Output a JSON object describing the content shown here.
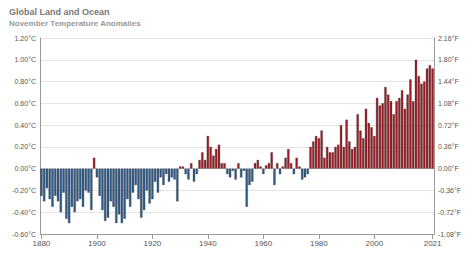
{
  "chart_data": {
    "type": "bar",
    "title": "Global Land and Ocean",
    "subtitle": "November Temperature Anomalies",
    "categories": [
      "1880",
      null,
      null,
      null,
      null,
      null,
      null,
      null,
      null,
      null,
      null,
      null,
      null,
      null,
      null,
      null,
      null,
      null,
      null,
      null,
      "1900",
      null,
      null,
      null,
      null,
      null,
      null,
      null,
      null,
      null,
      null,
      null,
      null,
      null,
      null,
      null,
      null,
      null,
      null,
      null,
      "1920",
      null,
      null,
      null,
      null,
      null,
      null,
      null,
      null,
      null,
      null,
      null,
      null,
      null,
      null,
      null,
      null,
      null,
      null,
      null,
      "1940",
      null,
      null,
      null,
      null,
      null,
      null,
      null,
      null,
      null,
      null,
      null,
      null,
      null,
      null,
      null,
      null,
      null,
      null,
      null,
      "1960",
      null,
      null,
      null,
      null,
      null,
      null,
      null,
      null,
      null,
      null,
      null,
      null,
      null,
      null,
      null,
      null,
      null,
      null,
      null,
      "1980",
      null,
      null,
      null,
      null,
      null,
      null,
      null,
      null,
      null,
      null,
      null,
      null,
      null,
      null,
      null,
      null,
      null,
      null,
      null,
      "2000",
      null,
      null,
      null,
      null,
      null,
      null,
      null,
      null,
      null,
      null,
      null,
      null,
      null,
      null,
      null,
      null,
      null,
      null,
      null,
      null,
      "2021"
    ],
    "values": [
      -0.25,
      -0.3,
      -0.18,
      -0.28,
      -0.35,
      -0.25,
      -0.3,
      -0.4,
      -0.22,
      -0.46,
      -0.5,
      -0.35,
      -0.4,
      -0.3,
      -0.28,
      -0.35,
      -0.2,
      -0.22,
      -0.38,
      0.1,
      -0.08,
      -0.25,
      -0.38,
      -0.48,
      -0.45,
      -0.3,
      -0.35,
      -0.5,
      -0.42,
      -0.5,
      -0.46,
      -0.28,
      -0.35,
      -0.22,
      -0.15,
      -0.28,
      -0.45,
      -0.38,
      -0.2,
      -0.32,
      -0.28,
      -0.12,
      -0.22,
      -0.08,
      -0.15,
      -0.05,
      -0.12,
      -0.08,
      -0.1,
      -0.3,
      0.02,
      0.02,
      -0.05,
      -0.1,
      0.05,
      -0.12,
      -0.05,
      0.08,
      0.15,
      0.08,
      0.3,
      0.2,
      0.12,
      0.18,
      0.22,
      0.05,
      0.05,
      -0.05,
      -0.08,
      -0.02,
      -0.1,
      0.05,
      -0.08,
      -0.02,
      -0.35,
      -0.15,
      -0.12,
      0.05,
      0.08,
      0.02,
      -0.05,
      0.03,
      0.05,
      0.15,
      -0.15,
      0.05,
      -0.05,
      0.02,
      0.1,
      0.18,
      0.05,
      -0.05,
      0.1,
      0.02,
      -0.1,
      -0.08,
      -0.05,
      0.2,
      0.25,
      0.3,
      0.28,
      0.35,
      0.1,
      0.2,
      0.15,
      0.15,
      0.2,
      0.22,
      0.4,
      0.2,
      0.45,
      0.25,
      0.18,
      0.2,
      0.5,
      0.35,
      0.28,
      0.55,
      0.42,
      0.38,
      0.3,
      0.65,
      0.58,
      0.6,
      0.75,
      0.68,
      0.62,
      0.5,
      0.62,
      0.65,
      0.72,
      0.55,
      0.68,
      0.82,
      0.62,
      1.0,
      0.85,
      0.78,
      0.8,
      0.92,
      0.95,
      0.92
    ],
    "colors": [
      "#2e5b8a",
      "#2e5b8a",
      "#2e5b8a",
      "#2e5b8a",
      "#2e5b8a",
      "#2e5b8a",
      "#2e5b8a",
      "#2e5b8a",
      "#2e5b8a",
      "#2e5b8a",
      "#2e5b8a",
      "#2e5b8a",
      "#2e5b8a",
      "#2e5b8a",
      "#2e5b8a",
      "#2e5b8a",
      "#2e5b8a",
      "#2e5b8a",
      "#2e5b8a",
      "#9e1b24",
      "#2e5b8a",
      "#2e5b8a",
      "#2e5b8a",
      "#2e5b8a",
      "#2e5b8a",
      "#2e5b8a",
      "#2e5b8a",
      "#2e5b8a",
      "#2e5b8a",
      "#2e5b8a",
      "#2e5b8a",
      "#2e5b8a",
      "#2e5b8a",
      "#2e5b8a",
      "#2e5b8a",
      "#2e5b8a",
      "#2e5b8a",
      "#2e5b8a",
      "#2e5b8a",
      "#2e5b8a",
      "#2e5b8a",
      "#2e5b8a",
      "#2e5b8a",
      "#2e5b8a",
      "#2e5b8a",
      "#2e5b8a",
      "#2e5b8a",
      "#2e5b8a",
      "#2e5b8a",
      "#2e5b8a",
      "#9e1b24",
      "#9e1b24",
      "#2e5b8a",
      "#2e5b8a",
      "#9e1b24",
      "#2e5b8a",
      "#2e5b8a",
      "#9e1b24",
      "#9e1b24",
      "#9e1b24",
      "#9e1b24",
      "#9e1b24",
      "#9e1b24",
      "#9e1b24",
      "#9e1b24",
      "#9e1b24",
      "#9e1b24",
      "#2e5b8a",
      "#2e5b8a",
      "#2e5b8a",
      "#2e5b8a",
      "#9e1b24",
      "#2e5b8a",
      "#2e5b8a",
      "#2e5b8a",
      "#2e5b8a",
      "#2e5b8a",
      "#9e1b24",
      "#9e1b24",
      "#9e1b24",
      "#2e5b8a",
      "#9e1b24",
      "#9e1b24",
      "#9e1b24",
      "#2e5b8a",
      "#9e1b24",
      "#2e5b8a",
      "#9e1b24",
      "#9e1b24",
      "#9e1b24",
      "#9e1b24",
      "#2e5b8a",
      "#9e1b24",
      "#9e1b24",
      "#2e5b8a",
      "#2e5b8a",
      "#2e5b8a",
      "#9e1b24",
      "#9e1b24",
      "#9e1b24",
      "#9e1b24",
      "#9e1b24",
      "#9e1b24",
      "#9e1b24",
      "#9e1b24",
      "#9e1b24",
      "#9e1b24",
      "#9e1b24",
      "#9e1b24",
      "#9e1b24",
      "#9e1b24",
      "#9e1b24",
      "#9e1b24",
      "#9e1b24",
      "#9e1b24",
      "#9e1b24",
      "#9e1b24",
      "#9e1b24",
      "#9e1b24",
      "#9e1b24",
      "#9e1b24",
      "#9e1b24",
      "#9e1b24",
      "#9e1b24",
      "#9e1b24",
      "#9e1b24",
      "#9e1b24",
      "#9e1b24",
      "#9e1b24",
      "#9e1b24",
      "#9e1b24",
      "#9e1b24",
      "#9e1b24",
      "#9e1b24",
      "#9e1b24",
      "#9e1b24",
      "#9e1b24",
      "#9e1b24",
      "#9e1b24",
      "#9e1b24",
      "#9e1b24",
      "#9e1b24"
    ],
    "ylim": [
      -0.6,
      1.2
    ],
    "yticks": [
      {
        "value": -0.6,
        "label": "-0.60°C"
      },
      {
        "value": -0.4,
        "label": "-0.40°C"
      },
      {
        "value": -0.2,
        "label": "-0.20°C"
      },
      {
        "value": 0,
        "label": "0.00°C"
      },
      {
        "value": 0.2,
        "label": "0.20°C"
      },
      {
        "value": 0.4,
        "label": "0.40°C"
      },
      {
        "value": 0.6,
        "label": "0.60°C"
      },
      {
        "value": 0.8,
        "label": "0.80°C"
      },
      {
        "value": 1.0,
        "label": "1.00°C"
      },
      {
        "value": 1.2,
        "label": "1.20°C"
      }
    ],
    "y2lim": [
      -1.08,
      2.16
    ],
    "y2ticks": [
      {
        "value": -1.08,
        "label": "-1.08°F"
      },
      {
        "value": -0.72,
        "label": "-0.72°F"
      },
      {
        "value": -0.36,
        "label": "-0.36°F"
      },
      {
        "value": 0,
        "label": "0.00°F"
      },
      {
        "value": 0.36,
        "label": "0.36°F"
      },
      {
        "value": 0.72,
        "label": "0.72°F"
      },
      {
        "value": 1.08,
        "label": "1.08°F"
      },
      {
        "value": 1.44,
        "label": "1.44°F"
      },
      {
        "value": 1.8,
        "label": "1.80°F"
      },
      {
        "value": 2.16,
        "label": "2.16°F"
      }
    ],
    "grid": true
  }
}
